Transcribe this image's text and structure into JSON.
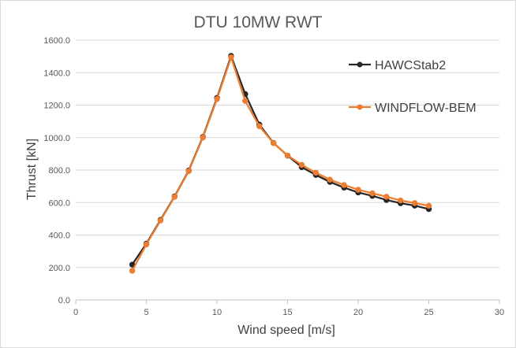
{
  "chart_data": {
    "type": "line",
    "title": "DTU 10MW RWT",
    "xlabel": "Wind speed [m/s]",
    "ylabel": "Thrust [kN]",
    "xlim": [
      0,
      30
    ],
    "ylim": [
      0,
      1600
    ],
    "x_ticks": [
      "0",
      "5",
      "10",
      "15",
      "20",
      "25",
      "30"
    ],
    "y_ticks": [
      "0.0",
      "200.0",
      "400.0",
      "600.0",
      "800.0",
      "1000.0",
      "1200.0",
      "1400.0",
      "1600.0"
    ],
    "grid": "horizontal",
    "legend_position": "top-right",
    "x": [
      4,
      5,
      6,
      7,
      8,
      9,
      10,
      11,
      12,
      13,
      14,
      15,
      16,
      17,
      18,
      19,
      20,
      21,
      22,
      23,
      24,
      25
    ],
    "series": [
      {
        "name": "HAWCStab2",
        "color": "#262626",
        "values": [
          218,
          347,
          493,
          638,
          797,
          1004,
          1244,
          1503,
          1268,
          1080,
          967,
          889,
          818,
          770,
          727,
          692,
          662,
          641,
          616,
          596,
          581,
          560
        ]
      },
      {
        "name": "WINDFLOW-BEM",
        "color": "#ed7d31",
        "values": [
          180,
          342,
          489,
          635,
          793,
          1000,
          1237,
          1494,
          1226,
          1070,
          966,
          890,
          832,
          784,
          741,
          708,
          679,
          657,
          636,
          613,
          597,
          580
        ]
      }
    ]
  }
}
